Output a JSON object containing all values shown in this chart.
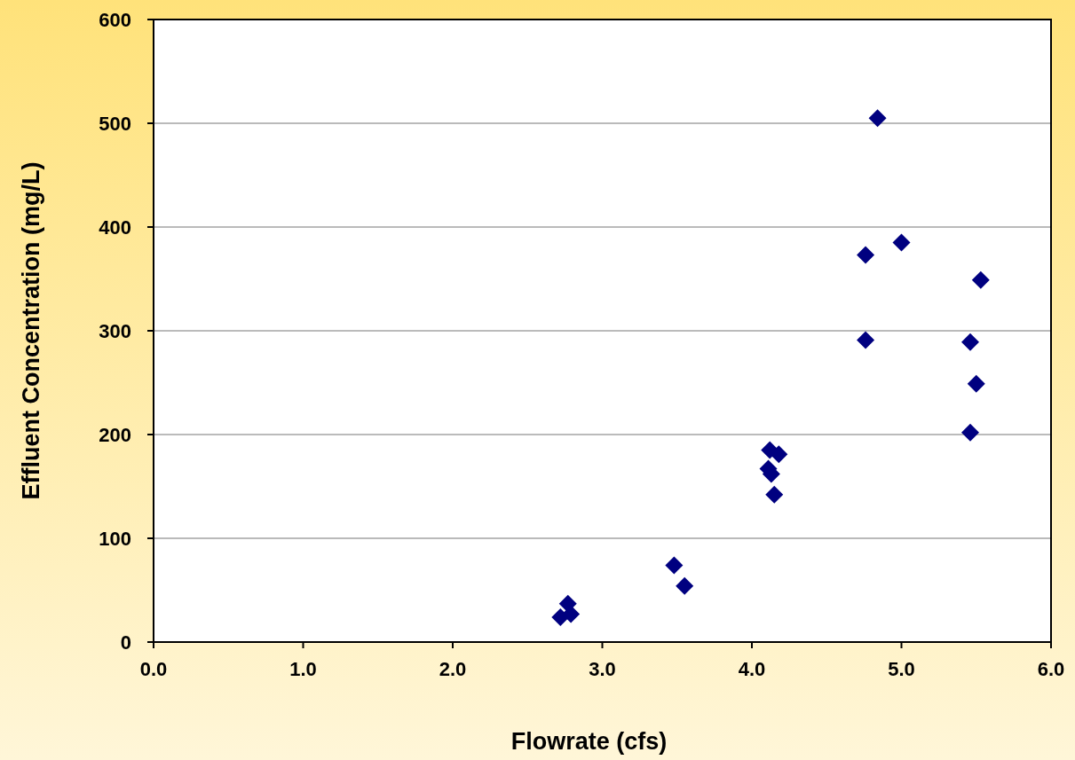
{
  "chart_data": {
    "type": "scatter",
    "xlabel": "Flowrate (cfs)",
    "ylabel": "Effluent Concentration (mg/L)",
    "x": [
      2.72,
      2.77,
      2.79,
      3.48,
      3.55,
      4.12,
      4.18,
      4.11,
      4.13,
      4.15,
      4.84,
      4.76,
      5.0,
      5.53,
      4.76,
      5.46,
      5.5,
      5.46
    ],
    "series": [
      {
        "color": "#000080",
        "values": [
          24,
          37,
          27,
          74,
          54,
          185,
          181,
          167,
          162,
          142,
          505,
          373,
          385,
          349,
          291,
          289,
          249,
          202
        ]
      }
    ],
    "xlim": [
      0,
      6
    ],
    "xticks": [
      {
        "value": 0,
        "label": "0.0"
      },
      {
        "value": 1,
        "label": "1.0"
      },
      {
        "value": 2,
        "label": "2.0"
      },
      {
        "value": 3,
        "label": "3.0"
      },
      {
        "value": 4,
        "label": "4.0"
      },
      {
        "value": 5,
        "label": "5.0"
      },
      {
        "value": 6,
        "label": "6.0"
      }
    ],
    "ylim": [
      0,
      600
    ],
    "yticks": [
      0,
      100,
      200,
      300,
      400,
      500,
      600
    ],
    "grid": "y",
    "marker": "diamond"
  }
}
